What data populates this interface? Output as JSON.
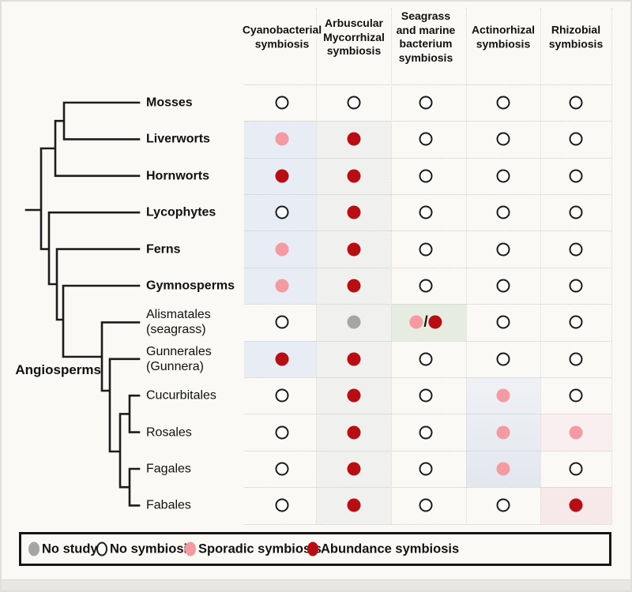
{
  "figure": {
    "clade_label": "Angiosperms",
    "dual_separator": "/",
    "columns": [
      {
        "label": "Cyanobacterial symbiosis",
        "lines": [
          "Cyanobacterial",
          "symbiosis"
        ]
      },
      {
        "label": "Arbuscular Mycorrhizal symbiosis",
        "lines": [
          "Arbuscular",
          "Mycorrhizal",
          "symbiosis"
        ]
      },
      {
        "label": "Seagrass and marine bacterium symbiosis",
        "lines": [
          "Seagrass",
          "and marine",
          "bacterium",
          "symbiosis"
        ]
      },
      {
        "label": "Actinorhizal symbiosis",
        "lines": [
          "Actinorhizal",
          "symbiosis"
        ]
      },
      {
        "label": "Rhizobial symbiosis",
        "lines": [
          "Rhizobial",
          "symbiosis"
        ]
      }
    ],
    "rows": [
      {
        "taxon": "Mosses",
        "lines": [
          "Mosses"
        ],
        "bold": true,
        "cells": [
          "none",
          "none",
          "none",
          "none",
          "none"
        ]
      },
      {
        "taxon": "Liverworts",
        "lines": [
          "Liverworts"
        ],
        "bold": true,
        "cells": [
          "sporadic",
          "abundance",
          "none",
          "none",
          "none"
        ]
      },
      {
        "taxon": "Hornworts",
        "lines": [
          "Hornworts"
        ],
        "bold": true,
        "cells": [
          "abundance",
          "abundance",
          "none",
          "none",
          "none"
        ]
      },
      {
        "taxon": "Lycophytes",
        "lines": [
          "Lycophytes"
        ],
        "bold": true,
        "cells": [
          "none",
          "abundance",
          "none",
          "none",
          "none"
        ]
      },
      {
        "taxon": "Ferns",
        "lines": [
          "Ferns"
        ],
        "bold": true,
        "cells": [
          "sporadic",
          "abundance",
          "none",
          "none",
          "none"
        ]
      },
      {
        "taxon": "Gymnosperms",
        "lines": [
          "Gymnosperms"
        ],
        "bold": true,
        "cells": [
          "sporadic",
          "abundance",
          "none",
          "none",
          "none"
        ]
      },
      {
        "taxon": "Alismatales (seagrass)",
        "lines": [
          "Alismatales",
          "(seagrass)"
        ],
        "bold": false,
        "cells": [
          "none",
          "no_study",
          "sporadic_or_abundance",
          "none",
          "none"
        ]
      },
      {
        "taxon": "Gunnerales (Gunnera)",
        "lines": [
          "Gunnerales",
          "(Gunnera)"
        ],
        "bold": false,
        "cells": [
          "abundance",
          "abundance",
          "none",
          "none",
          "none"
        ]
      },
      {
        "taxon": "Cucurbitales",
        "lines": [
          "Cucurbitales"
        ],
        "bold": false,
        "cells": [
          "none",
          "abundance",
          "none",
          "sporadic",
          "none"
        ]
      },
      {
        "taxon": "Rosales",
        "lines": [
          "Rosales"
        ],
        "bold": false,
        "cells": [
          "none",
          "abundance",
          "none",
          "sporadic",
          "sporadic"
        ]
      },
      {
        "taxon": "Fagales",
        "lines": [
          "Fagales"
        ],
        "bold": false,
        "cells": [
          "none",
          "abundance",
          "none",
          "sporadic",
          "none"
        ]
      },
      {
        "taxon": "Fabales",
        "lines": [
          "Fabales"
        ],
        "bold": false,
        "cells": [
          "none",
          "abundance",
          "none",
          "none",
          "abundance"
        ]
      }
    ],
    "colors": {
      "none": "#ffffff",
      "sporadic": "#f49aa0",
      "abundance": "#b80d12",
      "no_study": "#a5a5a5",
      "outline": "#1b1b1b"
    },
    "highlights": [
      {
        "col": 0,
        "row_start": 1,
        "row_end": 5,
        "color": "#e8ecf5"
      },
      {
        "col": 0,
        "row_start": 7,
        "row_end": 7,
        "color": "#e8ecf5"
      },
      {
        "col": 1,
        "row_start": 1,
        "row_end": 11,
        "color": "#f0f0ee"
      },
      {
        "col": 2,
        "row_start": 6,
        "row_end": 6,
        "color": "#e6ecdf"
      },
      {
        "col": 3,
        "row_start": 8,
        "row_end": 10,
        "color": "#e9ecf2",
        "gradient": true
      },
      {
        "col": 4,
        "row_start": 9,
        "row_end": 9,
        "color": "#f9eff1"
      },
      {
        "col": 4,
        "row_start": 11,
        "row_end": 11,
        "color": "#f7e9ea"
      }
    ],
    "legend": {
      "items": [
        {
          "type": "no_study",
          "label": "No study"
        },
        {
          "type": "none",
          "label": "No symbiosis"
        },
        {
          "type": "sporadic",
          "label": "Sporadic symbiosis"
        },
        {
          "type": "abundance",
          "label": "Abundance symbiosis"
        }
      ]
    }
  }
}
